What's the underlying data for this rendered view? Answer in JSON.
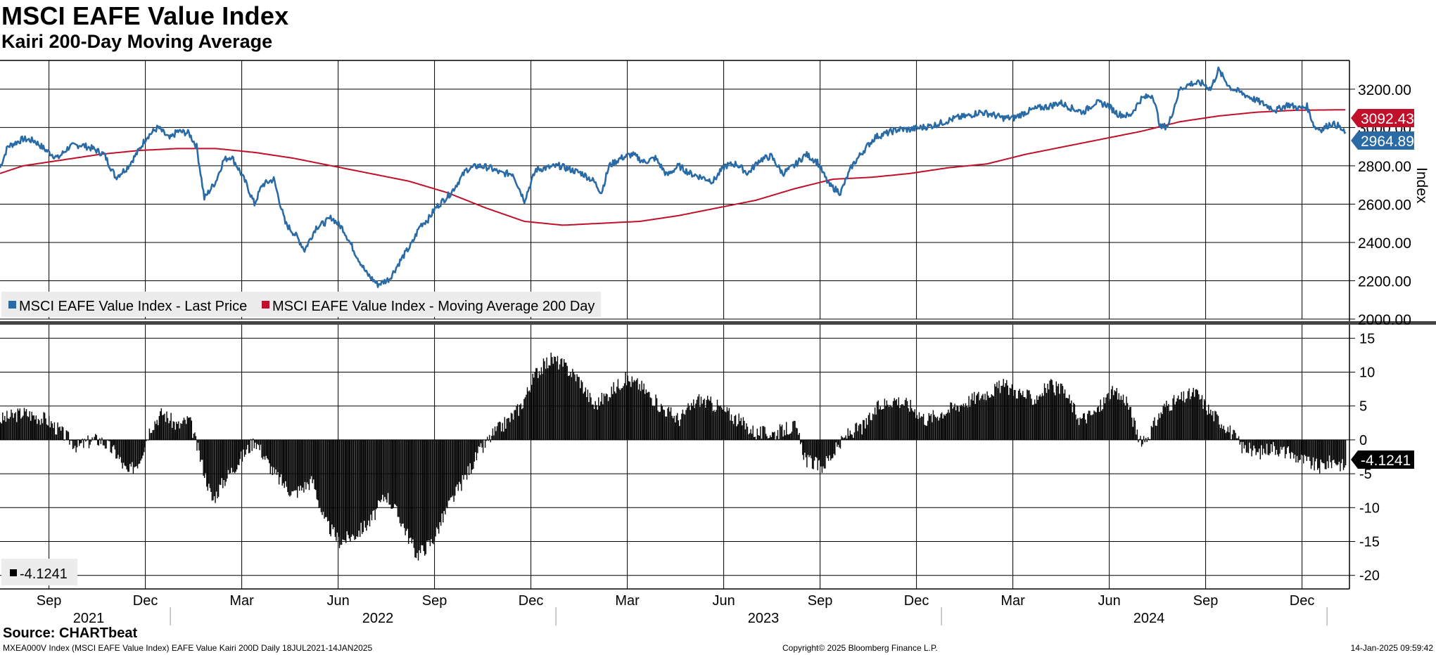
{
  "title": "MSCI EAFE Value Index",
  "subtitle": "Kairi 200-Day Moving Average",
  "source": "Source: CHARTbeat",
  "footer": {
    "left": "MXEA000V Index (MSCI EAFE Value Index) EAFE Value Kairi 200D  Daily 18JUL2021-14JAN2025",
    "center": "Copyright© 2025 Bloomberg Finance L.P.",
    "right": "14-Jan-2025 09:59:42"
  },
  "colors": {
    "price": "#2a6aa5",
    "ma": "#c0102a",
    "kairi": "#000000",
    "grid": "#000000"
  },
  "chart_data": [
    {
      "type": "line",
      "title": "MSCI EAFE Value Index",
      "ylabel": "Index",
      "ylim": [
        2000,
        3350
      ],
      "yticks": [
        "2000.00",
        "2200.00",
        "2400.00",
        "2600.00",
        "2800.00",
        "3000.00",
        "3200.00"
      ],
      "x_range": [
        2021.54,
        2025.04
      ],
      "x_month_ticks": [
        {
          "label": "Sep",
          "t": 2021.667
        },
        {
          "label": "Dec",
          "t": 2021.917
        },
        {
          "label": "Mar",
          "t": 2022.167
        },
        {
          "label": "Jun",
          "t": 2022.417
        },
        {
          "label": "Sep",
          "t": 2022.667
        },
        {
          "label": "Dec",
          "t": 2022.917
        },
        {
          "label": "Mar",
          "t": 2023.167
        },
        {
          "label": "Jun",
          "t": 2023.417
        },
        {
          "label": "Sep",
          "t": 2023.667
        },
        {
          "label": "Dec",
          "t": 2023.917
        },
        {
          "label": "Mar",
          "t": 2024.167
        },
        {
          "label": "Jun",
          "t": 2024.417
        },
        {
          "label": "Sep",
          "t": 2024.667
        },
        {
          "label": "Dec",
          "t": 2024.917
        }
      ],
      "x_year_labels": [
        {
          "label": "2021",
          "t": 2021.77
        },
        {
          "label": "2022",
          "t": 2022.52
        },
        {
          "label": "2023",
          "t": 2023.52
        },
        {
          "label": "2024",
          "t": 2024.52
        }
      ],
      "x_year_boundaries": [
        2022.0,
        2023.0,
        2024.0,
        2025.0
      ],
      "legend": [
        {
          "name": "MSCI EAFE Value Index - Last Price",
          "color": "#2a6aa5"
        },
        {
          "name": "MSCI EAFE Value Index - Moving Average 200 Day",
          "color": "#c0102a"
        }
      ],
      "last_labels": [
        {
          "value": "3092.43",
          "color": "#c0102a"
        },
        {
          "value": "2964.89",
          "color": "#2a6aa5"
        }
      ],
      "series": [
        {
          "name": "MSCI EAFE Value Index - Last Price",
          "x": [
            2021.54,
            2021.56,
            2021.6,
            2021.63,
            2021.66,
            2021.69,
            2021.72,
            2021.75,
            2021.78,
            2021.81,
            2021.84,
            2021.87,
            2021.9,
            2021.92,
            2021.95,
            2021.98,
            2022.0,
            2022.03,
            2022.05,
            2022.07,
            2022.1,
            2022.12,
            2022.14,
            2022.16,
            2022.18,
            2022.2,
            2022.22,
            2022.25,
            2022.28,
            2022.31,
            2022.33,
            2022.36,
            2022.38,
            2022.4,
            2022.43,
            2022.46,
            2022.49,
            2022.52,
            2022.55,
            2022.58,
            2022.61,
            2022.63,
            2022.65,
            2022.67,
            2022.69,
            2022.71,
            2022.73,
            2022.75,
            2022.78,
            2022.81,
            2022.84,
            2022.87,
            2022.9,
            2022.93,
            2022.96,
            2022.99,
            2023.02,
            2023.05,
            2023.08,
            2023.1,
            2023.12,
            2023.15,
            2023.18,
            2023.21,
            2023.24,
            2023.27,
            2023.3,
            2023.33,
            2023.36,
            2023.39,
            2023.42,
            2023.45,
            2023.48,
            2023.51,
            2023.54,
            2023.57,
            2023.6,
            2023.63,
            2023.66,
            2023.69,
            2023.72,
            2023.75,
            2023.78,
            2023.81,
            2023.84,
            2023.87,
            2023.9,
            2023.93,
            2023.96,
            2023.99,
            2024.02,
            2024.05,
            2024.08,
            2024.11,
            2024.14,
            2024.17,
            2024.2,
            2024.23,
            2024.26,
            2024.29,
            2024.32,
            2024.35,
            2024.38,
            2024.41,
            2024.44,
            2024.47,
            2024.5,
            2024.53,
            2024.55,
            2024.57,
            2024.6,
            2024.63,
            2024.66,
            2024.68,
            2024.7,
            2024.73,
            2024.76,
            2024.79,
            2024.82,
            2024.85,
            2024.88,
            2024.91,
            2024.93,
            2024.95,
            2024.97,
            2024.99,
            2025.01,
            2025.03
          ],
          "values": [
            2790,
            2900,
            2940,
            2930,
            2880,
            2840,
            2900,
            2910,
            2890,
            2860,
            2740,
            2790,
            2880,
            2950,
            3000,
            2940,
            2980,
            2970,
            2900,
            2630,
            2720,
            2830,
            2850,
            2780,
            2700,
            2600,
            2700,
            2730,
            2500,
            2430,
            2360,
            2480,
            2500,
            2530,
            2470,
            2350,
            2240,
            2180,
            2210,
            2310,
            2400,
            2490,
            2520,
            2580,
            2620,
            2660,
            2720,
            2780,
            2800,
            2790,
            2760,
            2760,
            2620,
            2780,
            2790,
            2800,
            2780,
            2760,
            2720,
            2660,
            2800,
            2840,
            2860,
            2820,
            2840,
            2750,
            2800,
            2760,
            2740,
            2720,
            2800,
            2810,
            2760,
            2830,
            2850,
            2760,
            2800,
            2860,
            2820,
            2700,
            2660,
            2800,
            2880,
            2950,
            2970,
            2990,
            2990,
            3000,
            3010,
            3030,
            3050,
            3060,
            3080,
            3070,
            3050,
            3050,
            3080,
            3100,
            3110,
            3130,
            3100,
            3080,
            3130,
            3120,
            3070,
            3060,
            3150,
            3170,
            3000,
            3010,
            3200,
            3230,
            3230,
            3200,
            3300,
            3210,
            3180,
            3150,
            3120,
            3090,
            3120,
            3100,
            3110,
            3000,
            2990,
            3020,
            3010,
            2965
          ]
        },
        {
          "name": "MSCI EAFE Value Index - Moving Average 200 Day",
          "x": [
            2021.54,
            2021.6,
            2021.7,
            2021.8,
            2021.9,
            2022.0,
            2022.1,
            2022.2,
            2022.3,
            2022.4,
            2022.5,
            2022.6,
            2022.7,
            2022.8,
            2022.9,
            2023.0,
            2023.1,
            2023.2,
            2023.3,
            2023.4,
            2023.5,
            2023.6,
            2023.7,
            2023.8,
            2023.9,
            2024.0,
            2024.1,
            2024.2,
            2024.3,
            2024.4,
            2024.5,
            2024.6,
            2024.7,
            2024.8,
            2024.9,
            2025.0,
            2025.03
          ],
          "values": [
            2760,
            2800,
            2830,
            2860,
            2880,
            2890,
            2890,
            2870,
            2840,
            2800,
            2760,
            2720,
            2660,
            2580,
            2510,
            2490,
            2500,
            2510,
            2540,
            2580,
            2620,
            2680,
            2730,
            2740,
            2760,
            2790,
            2810,
            2860,
            2900,
            2940,
            2980,
            3030,
            3060,
            3080,
            3090,
            3092,
            3092
          ]
        }
      ]
    },
    {
      "type": "bar",
      "title": "Kairi 200-Day Moving Average",
      "ylim": [
        -22,
        17
      ],
      "yticks": [
        "15",
        "10",
        "5",
        "0",
        "-5",
        "-10",
        "-15",
        "-20"
      ],
      "legend": [
        {
          "name": "-4.1241",
          "color": "#000000"
        }
      ],
      "last_label": {
        "value": "-4.1241",
        "color": "#000000"
      },
      "series": [
        {
          "name": "Kairi 200D",
          "x": [
            2021.54,
            2021.6,
            2021.66,
            2021.7,
            2021.74,
            2021.78,
            2021.8,
            2021.84,
            2021.87,
            2021.9,
            2021.93,
            2021.96,
            2022.0,
            2022.03,
            2022.06,
            2022.09,
            2022.12,
            2022.16,
            2022.2,
            2022.25,
            2022.3,
            2022.35,
            2022.38,
            2022.42,
            2022.46,
            2022.5,
            2022.54,
            2022.58,
            2022.62,
            2022.66,
            2022.7,
            2022.74,
            2022.78,
            2022.82,
            2022.86,
            2022.89,
            2022.93,
            2022.97,
            2023.0,
            2023.04,
            2023.08,
            2023.12,
            2023.16,
            2023.2,
            2023.25,
            2023.3,
            2023.35,
            2023.4,
            2023.45,
            2023.5,
            2023.55,
            2023.6,
            2023.63,
            2023.67,
            2023.7,
            2023.74,
            2023.78,
            2023.82,
            2023.86,
            2023.9,
            2023.94,
            2023.98,
            2024.02,
            2024.06,
            2024.1,
            2024.14,
            2024.18,
            2024.22,
            2024.26,
            2024.3,
            2024.34,
            2024.38,
            2024.42,
            2024.46,
            2024.5,
            2024.53,
            2024.56,
            2024.6,
            2024.64,
            2024.68,
            2024.72,
            2024.76,
            2024.8,
            2024.84,
            2024.88,
            2024.92,
            2024.96,
            2025.0,
            2025.03
          ],
          "values": [
            3,
            4,
            3,
            1,
            -1,
            0,
            0,
            -2,
            -5,
            -3,
            2,
            4,
            2,
            3,
            -3,
            -9,
            -6,
            -3,
            0,
            -5,
            -8,
            -6,
            -12,
            -15,
            -14,
            -12,
            -8,
            -12,
            -17,
            -15,
            -10,
            -6,
            -2,
            1,
            3,
            5,
            10,
            12,
            11,
            9,
            5,
            7,
            9,
            8,
            5,
            3,
            6,
            5,
            3,
            1,
            1,
            2,
            -3,
            -4,
            -2,
            1,
            2,
            5,
            6,
            5,
            3,
            4,
            5,
            6,
            7,
            8,
            7,
            6,
            8,
            7,
            3,
            4,
            7,
            6,
            -1,
            2,
            5,
            6,
            7,
            4,
            2,
            -1,
            -2,
            -1,
            -2,
            -3,
            -4,
            -3,
            -4.1241
          ]
        }
      ]
    }
  ]
}
